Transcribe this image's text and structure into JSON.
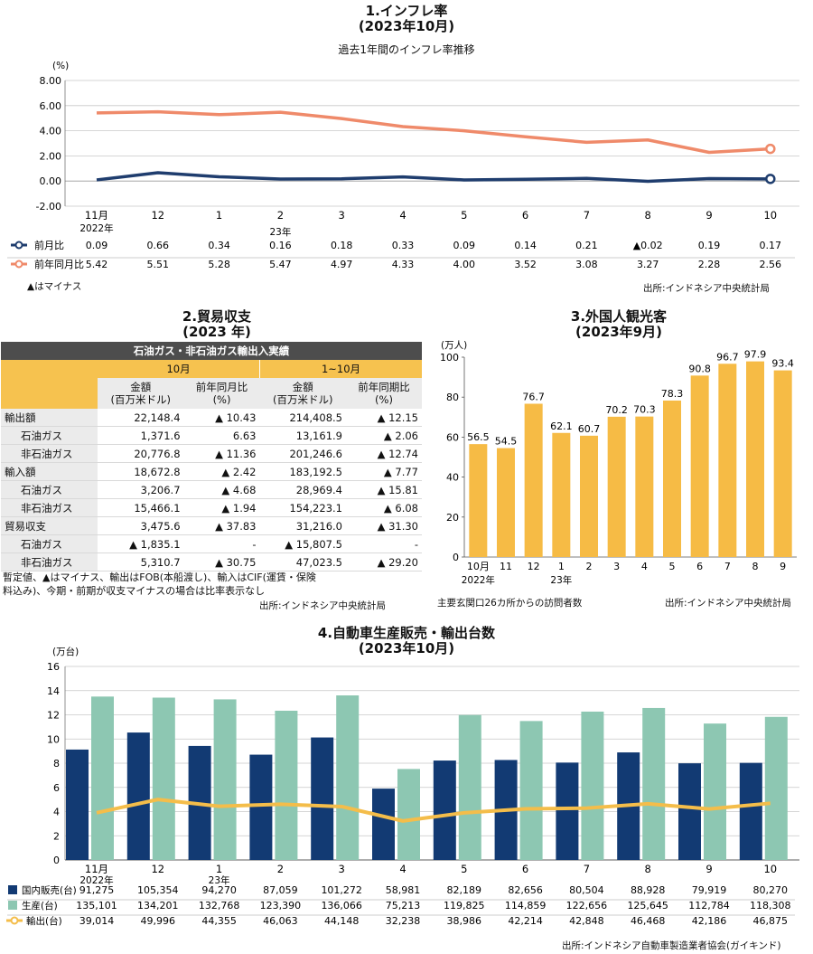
{
  "section1": {
    "title": "1.インフレ率",
    "subtitle": "(2023年10月)",
    "caption": "過去1年間のインフレ率推移",
    "unit": "(%)",
    "minus_note": "▲はマイナス",
    "source": "出所:インドネシア中央統計局",
    "year_labels": [
      "2022年",
      "23年"
    ]
  },
  "section2": {
    "title": "2.貿易収支",
    "subtitle": "(2023 年)",
    "table_title": "石油ガス・非石油ガス輸出入実績",
    "period1": "10月",
    "period2": "1~10月",
    "col_amount": "金額\n(百万米ドル)",
    "col_yoy": "前年同月比\n(%)",
    "col_yoy_period": "前年同期比\n(%)",
    "rows": [
      {
        "label": "輸出額",
        "indent": 0,
        "a1": "22,148.4",
        "r1": "▲ 10.43",
        "a2": "214,408.5",
        "r2": "▲ 12.15"
      },
      {
        "label": "石油ガス",
        "indent": 1,
        "a1": "1,371.6",
        "r1": "6.63",
        "a2": "13,161.9",
        "r2": "▲ 2.06"
      },
      {
        "label": "非石油ガス",
        "indent": 1,
        "a1": "20,776.8",
        "r1": "▲ 11.36",
        "a2": "201,246.6",
        "r2": "▲ 12.74"
      },
      {
        "label": "輸入額",
        "indent": 0,
        "a1": "18,672.8",
        "r1": "▲ 2.42",
        "a2": "183,192.5",
        "r2": "▲ 7.77"
      },
      {
        "label": "石油ガス",
        "indent": 1,
        "a1": "3,206.7",
        "r1": "▲ 4.68",
        "a2": "28,969.4",
        "r2": "▲ 15.81"
      },
      {
        "label": "非石油ガス",
        "indent": 1,
        "a1": "15,466.1",
        "r1": "▲ 1.94",
        "a2": "154,223.1",
        "r2": "▲ 6.08"
      },
      {
        "label": "貿易収支",
        "indent": 0,
        "a1": "3,475.6",
        "r1": "▲ 37.83",
        "a2": "31,216.0",
        "r2": "▲ 31.30"
      },
      {
        "label": "石油ガス",
        "indent": 1,
        "a1": "▲ 1,835.1",
        "r1": "-",
        "a2": "▲ 15,807.5",
        "r2": "-"
      },
      {
        "label": "非石油ガス",
        "indent": 1,
        "a1": "5,310.7",
        "r1": "▲ 30.75",
        "a2": "47,023.5",
        "r2": "▲ 29.20"
      }
    ],
    "note_line1": "暫定値、▲はマイナス、輸出はFOB(本船渡し)、輸入はCIF(運賃・保険",
    "note_line2": "料込み)、今期・前期が収支マイナスの場合は比率表示なし",
    "source": "出所:インドネシア中央統計局"
  },
  "section3": {
    "title": "3.外国人観光客",
    "subtitle": "(2023年9月)",
    "unit": "(万人)",
    "year_labels": [
      "2022年",
      "23年"
    ],
    "footnote": "主要玄関口26カ所からの訪問者数",
    "source": "出所:インドネシア中央統計局"
  },
  "section4": {
    "title": "4.自動車生産販売・輸出台数",
    "subtitle": "(2023年10月)",
    "unit": "(万台)",
    "year_labels": [
      "2022年",
      "23年"
    ],
    "source": "出所:インドネシア自動車製造業者協会(ガイキンド)"
  },
  "chart_data": [
    {
      "type": "line",
      "categories": [
        "11月",
        "12",
        "1",
        "2",
        "3",
        "4",
        "5",
        "6",
        "7",
        "8",
        "9",
        "10"
      ],
      "series": [
        {
          "name": "前月比",
          "values": [
            0.09,
            0.66,
            0.34,
            0.16,
            0.18,
            0.33,
            0.09,
            0.14,
            0.21,
            -0.02,
            0.19,
            0.17
          ],
          "labels": [
            "0.09",
            "0.66",
            "0.34",
            "0.16",
            "0.18",
            "0.33",
            "0.09",
            "0.14",
            "0.21",
            "▲0.02",
            "0.19",
            "0.17"
          ],
          "color": "#1f3d6e"
        },
        {
          "name": "前年同月比",
          "values": [
            5.42,
            5.51,
            5.28,
            5.47,
            4.97,
            4.33,
            4.0,
            3.52,
            3.08,
            3.27,
            2.28,
            2.56
          ],
          "labels": [
            "5.42",
            "5.51",
            "5.28",
            "5.47",
            "4.97",
            "4.33",
            "4.00",
            "3.52",
            "3.08",
            "3.27",
            "2.28",
            "2.56"
          ],
          "color": "#ef8a6a"
        }
      ],
      "yticks": [
        "8.00",
        "6.00",
        "4.00",
        "2.00",
        "0.00",
        "-2.00"
      ],
      "ylim": [
        -2,
        8
      ],
      "grid": true
    },
    {
      "type": "bar",
      "categories": [
        "10月",
        "11",
        "12",
        "1",
        "2",
        "3",
        "4",
        "5",
        "6",
        "7",
        "8",
        "9"
      ],
      "values": [
        56.5,
        54.5,
        76.7,
        62.1,
        60.7,
        70.2,
        70.3,
        78.3,
        90.8,
        96.7,
        97.9,
        93.4
      ],
      "labels": [
        "56.5",
        "54.5",
        "76.7",
        "62.1",
        "60.7",
        "70.2",
        "70.3",
        "78.3",
        "90.8",
        "96.7",
        "97.9",
        "93.4"
      ],
      "yticks": [
        "100",
        "80",
        "60",
        "40",
        "20",
        "0"
      ],
      "ylim": [
        0,
        100
      ],
      "color": "#f6bb45"
    },
    {
      "type": "bar",
      "categories": [
        "11月",
        "12",
        "1",
        "2",
        "3",
        "4",
        "5",
        "6",
        "7",
        "8",
        "9",
        "10"
      ],
      "series": [
        {
          "name": "国内販売(台)",
          "values": [
            91275,
            105354,
            94270,
            87059,
            101272,
            58981,
            82189,
            82656,
            80504,
            88928,
            79919,
            80270
          ],
          "labels": [
            "91,275",
            "105,354",
            "94,270",
            "87,059",
            "101,272",
            "58,981",
            "82,189",
            "82,656",
            "80,504",
            "88,928",
            "79,919",
            "80,270"
          ],
          "color": "#123a73"
        },
        {
          "name": "生産(台)",
          "values": [
            135101,
            134201,
            132768,
            123390,
            136066,
            75213,
            119825,
            114859,
            122656,
            125645,
            112784,
            118308
          ],
          "labels": [
            "135,101",
            "134,201",
            "132,768",
            "123,390",
            "136,066",
            "75,213",
            "119,825",
            "114,859",
            "122,656",
            "125,645",
            "112,784",
            "118,308"
          ],
          "color": "#8dc7b2"
        },
        {
          "name": "輸出(台)",
          "values": [
            39014,
            49996,
            44355,
            46063,
            44148,
            32238,
            38986,
            42214,
            42848,
            46468,
            42186,
            46875
          ],
          "labels": [
            "39,014",
            "49,996",
            "44,355",
            "46,063",
            "44,148",
            "32,238",
            "38,986",
            "42,214",
            "42,848",
            "46,468",
            "42,186",
            "46,875"
          ],
          "color": "#f4bd4a"
        }
      ],
      "yticks": [
        "16",
        "14",
        "12",
        "10",
        "8",
        "6",
        "4",
        "2",
        "0"
      ],
      "ylim": [
        0,
        160000
      ],
      "grid": true
    }
  ]
}
